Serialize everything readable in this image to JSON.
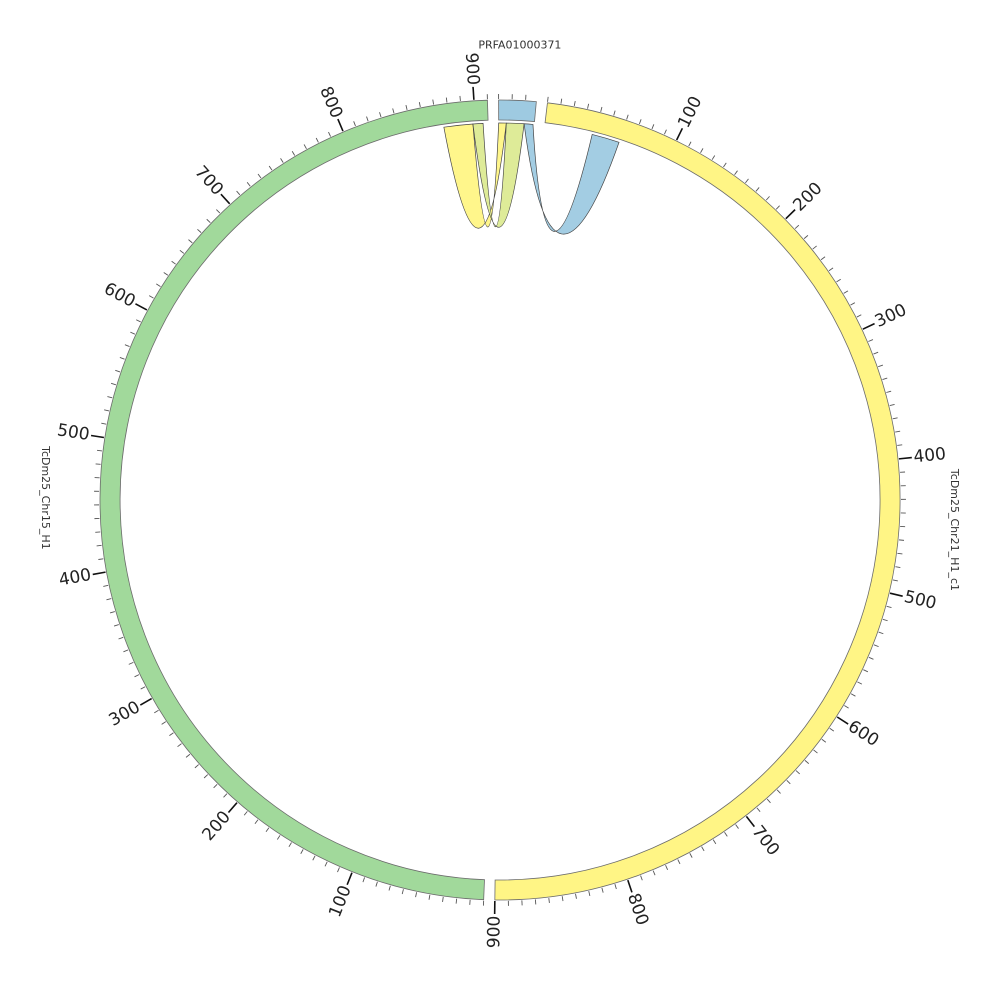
{
  "chart_data": {
    "type": "circos",
    "segments": [
      {
        "id": "PRFA01000371",
        "label": "PRFA01000371",
        "length": 28,
        "color": "#9ecae1",
        "tick_labels": []
      },
      {
        "id": "TcDm25_Chr21_H1_c1",
        "label": "TcDm25_Chr21_H1_c1",
        "length": 900,
        "color": "#fff585",
        "tick_labels": [
          "100",
          "200",
          "300",
          "400",
          "500",
          "600",
          "700",
          "800",
          "900"
        ]
      },
      {
        "id": "TcDm25_Chr15_H1",
        "label": "TcDm25_Chr15_H1",
        "length": 910,
        "color": "#a1d99b",
        "tick_labels": [
          "100",
          "200",
          "300",
          "400",
          "500",
          "600",
          "700",
          "800",
          "900"
        ]
      }
    ],
    "links": [
      {
        "source": "PRFA01000371",
        "source_start": 0,
        "source_end": 6,
        "target": "TcDm25_Chr15_H1",
        "target_start": 875,
        "target_end": 898,
        "color": "#fff585"
      },
      {
        "source": "PRFA01000371",
        "source_start": 6,
        "source_end": 20,
        "target": "TcDm25_Chr15_H1",
        "target_start": 898,
        "target_end": 906,
        "color": "#dcea92"
      },
      {
        "source": "PRFA01000371",
        "source_start": 20,
        "source_end": 27,
        "target": "TcDm25_Chr21_H1_c1",
        "target_start": 38,
        "target_end": 60,
        "color": "#9ecae1"
      }
    ]
  }
}
